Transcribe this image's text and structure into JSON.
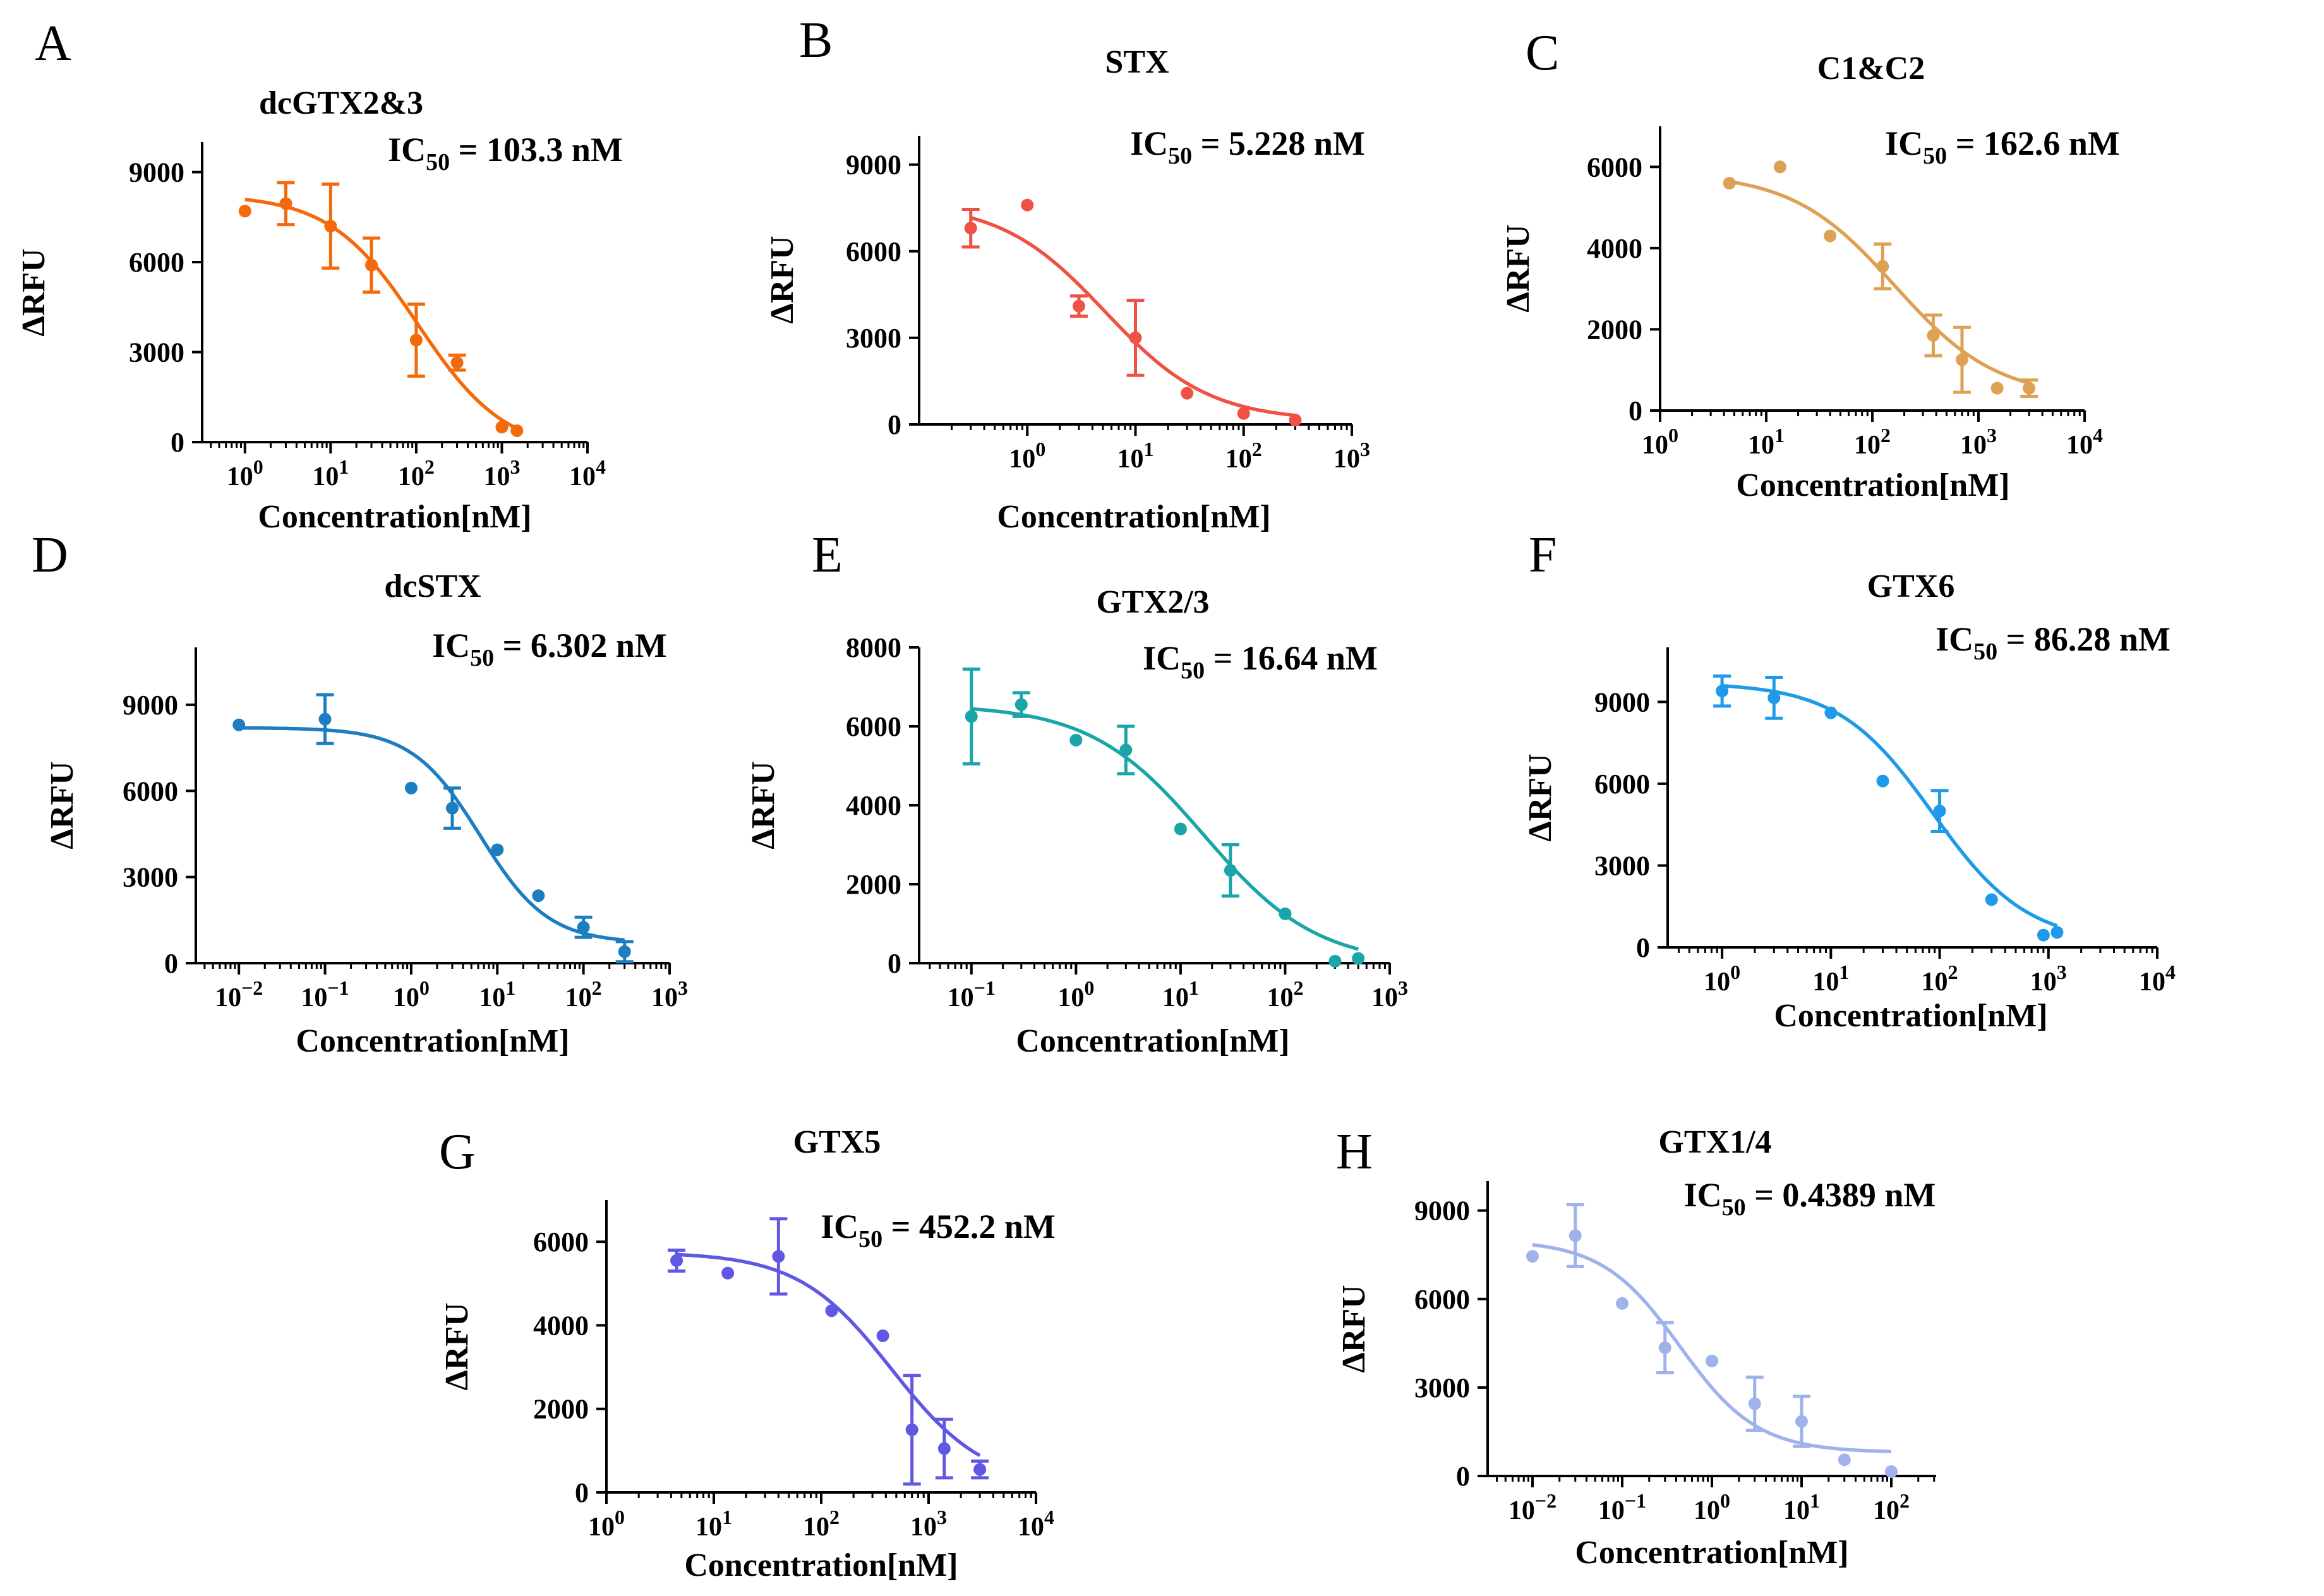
{
  "chart_data": [
    {
      "type": "scatter",
      "panel": "A",
      "title": "dcGTX2&3",
      "ic50_label": "IC",
      "ic50_sub": "50",
      "ic50_text": " = 103.3 nM",
      "xlabel": "Concentration[nM]",
      "ylabel": "ΔRFU",
      "x_scale": "log",
      "color": "#F46A0A",
      "xlim_exp": [
        -0.5,
        4
      ],
      "ylim": [
        0,
        10000
      ],
      "yticks": [
        0,
        3000,
        6000,
        9000
      ],
      "ytick_labels": [
        "0",
        "3000",
        "6000",
        "9000"
      ],
      "xtick_exps": [
        0,
        1,
        2,
        3,
        4
      ],
      "xtick_bases": [
        "10",
        "10",
        "10",
        "10",
        "10"
      ],
      "xtick_sups": [
        "0",
        "1",
        "2",
        "3",
        "4"
      ],
      "points": [
        {
          "x": 1,
          "y": 7700,
          "err": 0
        },
        {
          "x": 3,
          "y": 7950,
          "err": 700
        },
        {
          "x": 10,
          "y": 7200,
          "err": 1400
        },
        {
          "x": 30,
          "y": 5900,
          "err": 900
        },
        {
          "x": 100,
          "y": 3400,
          "err": 1200
        },
        {
          "x": 300,
          "y": 2650,
          "err": 250
        },
        {
          "x": 1000,
          "y": 500,
          "err": 0
        },
        {
          "x": 1500,
          "y": 380,
          "err": 0
        }
      ],
      "fit": {
        "top": 8250,
        "bottom": -350,
        "ic50": 103.3,
        "hill": 0.85,
        "x_range": [
          1,
          1500
        ]
      }
    },
    {
      "type": "scatter",
      "panel": "B",
      "title": "STX",
      "ic50_label": "IC",
      "ic50_sub": "50",
      "ic50_text": " = 5.228 nM",
      "xlabel": "Concentration[nM]",
      "ylabel": "ΔRFU",
      "x_scale": "log",
      "color": "#EF5244",
      "xlim_exp": [
        -1,
        3
      ],
      "ylim": [
        0,
        10000
      ],
      "yticks": [
        0,
        3000,
        6000,
        9000
      ],
      "ytick_labels": [
        "0",
        "3000",
        "6000",
        "9000"
      ],
      "xtick_exps": [
        0,
        1,
        2,
        3
      ],
      "xtick_bases": [
        "10",
        "10",
        "10",
        "10"
      ],
      "xtick_sups": [
        "0",
        "1",
        "2",
        "3"
      ],
      "points": [
        {
          "x": 0.3,
          "y": 6800,
          "err": 650
        },
        {
          "x": 1,
          "y": 7600,
          "err": 0
        },
        {
          "x": 3,
          "y": 4100,
          "err": 350
        },
        {
          "x": 10,
          "y": 3000,
          "err": 1300
        },
        {
          "x": 30,
          "y": 1080,
          "err": 0
        },
        {
          "x": 100,
          "y": 380,
          "err": 0
        },
        {
          "x": 300,
          "y": 150,
          "err": 0
        }
      ],
      "fit": {
        "top": 7700,
        "bottom": 120,
        "ic50": 5.228,
        "hill": 0.9,
        "x_range": [
          0.3,
          300
        ]
      }
    },
    {
      "type": "scatter",
      "panel": "C",
      "title": "C1&C2",
      "ic50_label": "IC",
      "ic50_sub": "50",
      "ic50_text": " = 162.6 nM",
      "xlabel": "Concentration[nM]",
      "ylabel": "ΔRFU",
      "x_scale": "log",
      "color": "#DEA153",
      "xlim_exp": [
        0,
        4
      ],
      "ylim": [
        0,
        7000
      ],
      "yticks": [
        0,
        2000,
        4000,
        6000
      ],
      "ytick_labels": [
        "0",
        "2000",
        "4000",
        "6000"
      ],
      "xtick_exps": [
        0,
        1,
        2,
        3,
        4
      ],
      "xtick_bases": [
        "10",
        "10",
        "10",
        "10",
        "10"
      ],
      "xtick_sups": [
        "0",
        "1",
        "2",
        "3",
        "4"
      ],
      "points": [
        {
          "x": 4.5,
          "y": 5600,
          "err": 0
        },
        {
          "x": 13.5,
          "y": 6000,
          "err": 0
        },
        {
          "x": 40,
          "y": 4300,
          "err": 0
        },
        {
          "x": 125,
          "y": 3550,
          "err": 550
        },
        {
          "x": 375,
          "y": 1850,
          "err": 500
        },
        {
          "x": 700,
          "y": 1250,
          "err": 800
        },
        {
          "x": 1500,
          "y": 550,
          "err": 0
        },
        {
          "x": 3000,
          "y": 550,
          "err": 200
        }
      ],
      "fit": {
        "top": 5850,
        "bottom": 300,
        "ic50": 162.6,
        "hill": 0.9,
        "x_range": [
          4.5,
          3000
        ]
      }
    },
    {
      "type": "scatter",
      "panel": "D",
      "title": "dcSTX",
      "ic50_label": "IC",
      "ic50_sub": "50",
      "ic50_text": " = 6.302 nM",
      "xlabel": "Concentration[nM]",
      "ylabel": "ΔRFU",
      "x_scale": "log",
      "color": "#1C7EC0",
      "xlim_exp": [
        -2.5,
        3
      ],
      "ylim": [
        0,
        11000
      ],
      "yticks": [
        0,
        3000,
        6000,
        9000
      ],
      "ytick_labels": [
        "0",
        "3000",
        "6000",
        "9000"
      ],
      "xtick_exps": [
        -2,
        -1,
        0,
        1,
        2,
        3
      ],
      "xtick_bases": [
        "10",
        "10",
        "10",
        "10",
        "10",
        "10"
      ],
      "xtick_sups": [
        "−2",
        "−1",
        "0",
        "1",
        "2",
        "3"
      ],
      "points": [
        {
          "x": 0.01,
          "y": 8300,
          "err": 0
        },
        {
          "x": 0.1,
          "y": 8500,
          "err": 850
        },
        {
          "x": 1,
          "y": 6100,
          "err": 0
        },
        {
          "x": 3,
          "y": 5400,
          "err": 700
        },
        {
          "x": 10,
          "y": 3950,
          "err": 0
        },
        {
          "x": 30,
          "y": 2350,
          "err": 0
        },
        {
          "x": 100,
          "y": 1250,
          "err": 350
        },
        {
          "x": 300,
          "y": 400,
          "err": 350
        }
      ],
      "fit": {
        "top": 8200,
        "bottom": 700,
        "ic50": 6.302,
        "hill": 1.1,
        "x_range": [
          0.01,
          300
        ]
      }
    },
    {
      "type": "scatter",
      "panel": "E",
      "title": "GTX2/3",
      "ic50_label": "IC",
      "ic50_sub": "50",
      "ic50_text": " = 16.64 nM",
      "xlabel": "Concentration[nM]",
      "ylabel": "ΔRFU",
      "x_scale": "log",
      "color": "#1AA6A8",
      "xlim_exp": [
        -1.5,
        3
      ],
      "ylim": [
        0,
        8000
      ],
      "yticks": [
        0,
        2000,
        4000,
        6000,
        8000
      ],
      "ytick_labels": [
        "0",
        "2000",
        "4000",
        "6000",
        "8000"
      ],
      "xtick_exps": [
        -1,
        0,
        1,
        2,
        3
      ],
      "xtick_bases": [
        "10",
        "10",
        "10",
        "10",
        "10"
      ],
      "xtick_sups": [
        "−1",
        "0",
        "1",
        "2",
        "3"
      ],
      "points": [
        {
          "x": 0.1,
          "y": 6250,
          "err": 1200
        },
        {
          "x": 0.3,
          "y": 6550,
          "err": 300
        },
        {
          "x": 1,
          "y": 5650,
          "err": 0
        },
        {
          "x": 3,
          "y": 5400,
          "err": 600
        },
        {
          "x": 10,
          "y": 3400,
          "err": 0
        },
        {
          "x": 30,
          "y": 2350,
          "err": 650
        },
        {
          "x": 100,
          "y": 1250,
          "err": 0
        },
        {
          "x": 300,
          "y": 50,
          "err": 0
        },
        {
          "x": 500,
          "y": 120,
          "err": 0
        }
      ],
      "fit": {
        "top": 6550,
        "bottom": -50,
        "ic50": 16.64,
        "hill": 0.8,
        "x_range": [
          0.1,
          500
        ]
      }
    },
    {
      "type": "scatter",
      "panel": "F",
      "title": "GTX6",
      "ic50_label": "IC",
      "ic50_sub": "50",
      "ic50_text": " = 86.28 nM",
      "xlabel": "Concentration[nM]",
      "ylabel": "ΔRFU",
      "x_scale": "log",
      "color": "#1E9AE8",
      "xlim_exp": [
        -0.5,
        4
      ],
      "ylim": [
        0,
        11000
      ],
      "yticks": [
        0,
        3000,
        6000,
        9000
      ],
      "ytick_labels": [
        "0",
        "3000",
        "6000",
        "9000"
      ],
      "xtick_exps": [
        0,
        1,
        2,
        3,
        4
      ],
      "xtick_bases": [
        "10",
        "10",
        "10",
        "10",
        "10"
      ],
      "xtick_sups": [
        "0",
        "1",
        "2",
        "3",
        "4"
      ],
      "points": [
        {
          "x": 1,
          "y": 9400,
          "err": 550
        },
        {
          "x": 3,
          "y": 9150,
          "err": 750
        },
        {
          "x": 10,
          "y": 8600,
          "err": 0
        },
        {
          "x": 30,
          "y": 6100,
          "err": 0
        },
        {
          "x": 100,
          "y": 5000,
          "err": 750
        },
        {
          "x": 300,
          "y": 1750,
          "err": 0
        },
        {
          "x": 900,
          "y": 450,
          "err": 0
        },
        {
          "x": 1200,
          "y": 550,
          "err": 0
        }
      ],
      "fit": {
        "top": 9700,
        "bottom": 150,
        "ic50": 86.28,
        "hill": 1.0,
        "x_range": [
          1,
          1200
        ]
      }
    },
    {
      "type": "scatter",
      "panel": "G",
      "title": "GTX5",
      "ic50_label": "IC",
      "ic50_sub": "50",
      "ic50_text": " = 452.2 nM",
      "xlabel": "Concentration[nM]",
      "ylabel": "ΔRFU",
      "x_scale": "log",
      "color": "#6058E5",
      "xlim_exp": [
        0,
        4
      ],
      "ylim": [
        0,
        7000
      ],
      "yticks": [
        0,
        2000,
        4000,
        6000
      ],
      "ytick_labels": [
        "0",
        "2000",
        "4000",
        "6000"
      ],
      "xtick_exps": [
        0,
        1,
        2,
        3,
        4
      ],
      "xtick_bases": [
        "10",
        "10",
        "10",
        "10",
        "10"
      ],
      "xtick_sups": [
        "0",
        "1",
        "2",
        "3",
        "4"
      ],
      "points": [
        {
          "x": 4.5,
          "y": 5550,
          "err": 250
        },
        {
          "x": 13.5,
          "y": 5250,
          "err": 0
        },
        {
          "x": 40,
          "y": 5650,
          "err": 900
        },
        {
          "x": 125,
          "y": 4350,
          "err": 0
        },
        {
          "x": 375,
          "y": 3750,
          "err": 0
        },
        {
          "x": 700,
          "y": 1500,
          "err": 1300
        },
        {
          "x": 1400,
          "y": 1050,
          "err": 700
        },
        {
          "x": 3000,
          "y": 550,
          "err": 200
        }
      ],
      "fit": {
        "top": 5750,
        "bottom": 150,
        "ic50": 452.2,
        "hill": 1.0,
        "x_range": [
          4.5,
          3000
        ]
      }
    },
    {
      "type": "scatter",
      "panel": "H",
      "title": "GTX1/4",
      "ic50_label": "IC",
      "ic50_sub": "50",
      "ic50_text": " = 0.4389 nM",
      "xlabel": "Concentration[nM]",
      "ylabel": "ΔRFU",
      "x_scale": "log",
      "color": "#A0B2EC",
      "xlim_exp": [
        -2.5,
        2.5
      ],
      "ylim": [
        0,
        10000
      ],
      "yticks": [
        0,
        3000,
        6000,
        9000
      ],
      "ytick_labels": [
        "0",
        "3000",
        "6000",
        "9000"
      ],
      "xtick_exps": [
        -2,
        -1,
        0,
        1,
        2
      ],
      "xtick_bases": [
        "10",
        "10",
        "10",
        "10",
        "10"
      ],
      "xtick_sups": [
        "−2",
        "−1",
        "0",
        "1",
        "2"
      ],
      "points": [
        {
          "x": 0.01,
          "y": 7450,
          "err": 0
        },
        {
          "x": 0.03,
          "y": 8150,
          "err": 1050
        },
        {
          "x": 0.1,
          "y": 5850,
          "err": 0
        },
        {
          "x": 0.3,
          "y": 4350,
          "err": 850
        },
        {
          "x": 1,
          "y": 3900,
          "err": 0
        },
        {
          "x": 3,
          "y": 2450,
          "err": 900
        },
        {
          "x": 10,
          "y": 1850,
          "err": 850
        },
        {
          "x": 30,
          "y": 550,
          "err": 0
        },
        {
          "x": 100,
          "y": 150,
          "err": 0
        }
      ],
      "fit": {
        "top": 8000,
        "bottom": 800,
        "ic50": 0.4389,
        "hill": 1.0,
        "x_range": [
          0.01,
          100
        ]
      }
    }
  ]
}
